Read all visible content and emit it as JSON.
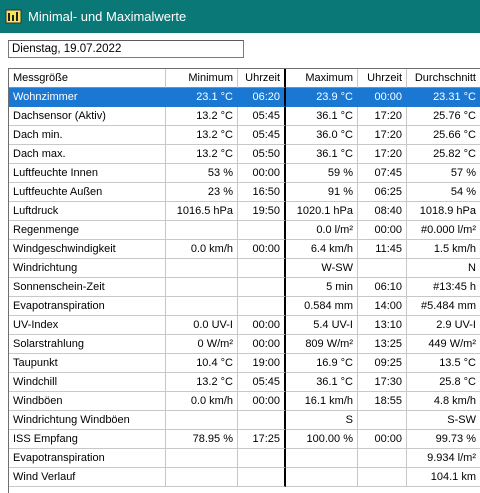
{
  "window": {
    "title": "Minimal- und Maximalwerte",
    "accent": "#0a7876"
  },
  "date_field": {
    "value": "Dienstag, 19.07.2022"
  },
  "table": {
    "columns": [
      "Messgröße",
      "Minimum",
      "Uhrzeit",
      "Maximum",
      "Uhrzeit",
      "Durchschnitt"
    ],
    "selected_row": 0,
    "selection_color": "#1a77d2",
    "rows": [
      [
        "Wohnzimmer",
        "23.1 °C",
        "06:20",
        "23.9 °C",
        "00:00",
        "23.31 °C"
      ],
      [
        "Dachsensor (Aktiv)",
        "13.2 °C",
        "05:45",
        "36.1 °C",
        "17:20",
        "25.76 °C"
      ],
      [
        "Dach min.",
        "13.2 °C",
        "05:45",
        "36.0 °C",
        "17:20",
        "25.66 °C"
      ],
      [
        "Dach max.",
        "13.2 °C",
        "05:50",
        "36.1 °C",
        "17:20",
        "25.82 °C"
      ],
      [
        "Luftfeuchte Innen",
        "53 %",
        "00:00",
        "59 %",
        "07:45",
        "57 %"
      ],
      [
        "Luftfeuchte Außen",
        "23 %",
        "16:50",
        "91 %",
        "06:25",
        "54 %"
      ],
      [
        "Luftdruck",
        "1016.5 hPa",
        "19:50",
        "1020.1 hPa",
        "08:40",
        "1018.9 hPa"
      ],
      [
        "Regenmenge",
        "",
        "",
        "0.0 l/m²",
        "00:00",
        "#0.000 l/m²"
      ],
      [
        "Windgeschwindigkeit",
        "0.0 km/h",
        "00:00",
        "6.4 km/h",
        "11:45",
        "1.5 km/h"
      ],
      [
        "Windrichtung",
        "",
        "",
        "W-SW",
        "",
        "N"
      ],
      [
        "Sonnenschein-Zeit",
        "",
        "",
        "5 min",
        "06:10",
        "#13:45 h"
      ],
      [
        "Evapotranspiration",
        "",
        "",
        "0.584 mm",
        "14:00",
        "#5.484 mm"
      ],
      [
        "UV-Index",
        "0.0 UV-I",
        "00:00",
        "5.4 UV-I",
        "13:10",
        "2.9 UV-I"
      ],
      [
        "Solarstrahlung",
        "0 W/m²",
        "00:00",
        "809 W/m²",
        "13:25",
        "449 W/m²"
      ],
      [
        "Taupunkt",
        "10.4 °C",
        "19:00",
        "16.9 °C",
        "09:25",
        "13.5 °C"
      ],
      [
        "Windchill",
        "13.2 °C",
        "05:45",
        "36.1 °C",
        "17:30",
        "25.8 °C"
      ],
      [
        "Windböen",
        "0.0 km/h",
        "00:00",
        "16.1 km/h",
        "18:55",
        "4.8 km/h"
      ],
      [
        "Windrichtung Windböen",
        "",
        "",
        "S",
        "",
        "S-SW"
      ],
      [
        "ISS Empfang",
        "78.95 %",
        "17:25",
        "100.00 %",
        "00:00",
        "99.73 %"
      ],
      [
        "Evapotranspiration",
        "",
        "",
        "",
        "",
        "9.934 l/m²"
      ],
      [
        "Wind Verlauf",
        "",
        "",
        "",
        "",
        "104.1 km"
      ]
    ]
  }
}
